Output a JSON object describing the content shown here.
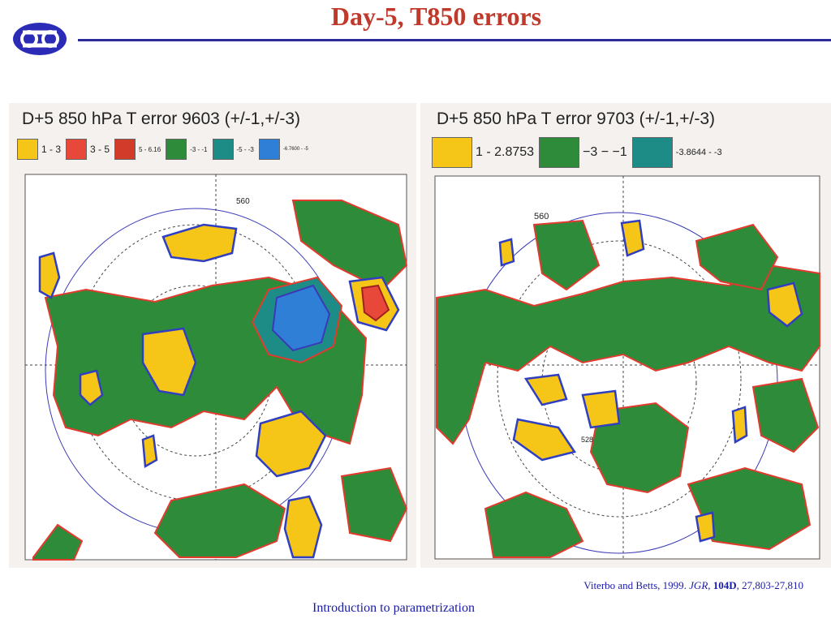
{
  "slide": {
    "title": "Day-5, T850 errors",
    "footer": "Introduction to parametrization",
    "citation": {
      "authors": "Viterbo and Betts, 1999.",
      "journal": "JGR",
      "volume": "104D",
      "pages": "27,803-27,810"
    }
  },
  "maps": [
    {
      "title": "D+5  850 hPa T error 9603 (+/-1,+/-3)",
      "contour_labels": [
        "560"
      ],
      "legend": [
        {
          "label": "1 - 3",
          "color": "#f5c518"
        },
        {
          "label": "3 - 5",
          "color": "#e8483a"
        },
        {
          "label": "5 - 6.16",
          "color": "#d23a2a"
        },
        {
          "label": "-3 - -1",
          "color": "#2e8b3a"
        },
        {
          "label": "-5 - -3",
          "color": "#1e8c86"
        },
        {
          "label": "-6.7600 - -5",
          "color": "#2f7fd6"
        }
      ]
    },
    {
      "title": "D+5  850 hPa T error 9703 (+/-1,+/-3)",
      "contour_labels": [
        "560",
        "528"
      ],
      "legend": [
        {
          "label": "1  -  2.8753",
          "color": "#f5c518"
        },
        {
          "label": "−3  −  −1",
          "color": "#2e8b3a"
        },
        {
          "label": "-3.8644 - -3",
          "color": "#1e8c86"
        }
      ]
    }
  ],
  "colors": {
    "title": "#c0392b",
    "rule": "#2b2b9a",
    "positive": "#f5c518",
    "negative": "#2e8b3a",
    "outline": "#e23b2e",
    "contour": "#3a3ab8"
  }
}
